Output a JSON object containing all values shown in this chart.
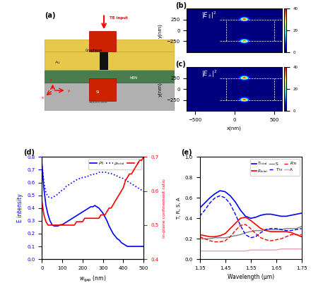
{
  "panel_d": {
    "x": [
      0,
      10,
      20,
      30,
      40,
      50,
      60,
      70,
      80,
      90,
      100,
      110,
      120,
      130,
      140,
      150,
      160,
      170,
      180,
      190,
      200,
      210,
      220,
      230,
      240,
      250,
      260,
      270,
      280,
      290,
      300,
      310,
      320,
      330,
      340,
      350,
      360,
      370,
      380,
      390,
      400,
      410,
      420,
      430,
      440,
      450,
      460,
      470,
      480,
      490,
      500
    ],
    "rho_parallel": [
      0.75,
      0.55,
      0.42,
      0.35,
      0.3,
      0.27,
      0.26,
      0.26,
      0.26,
      0.27,
      0.27,
      0.28,
      0.29,
      0.3,
      0.31,
      0.32,
      0.33,
      0.34,
      0.35,
      0.36,
      0.37,
      0.38,
      0.39,
      0.4,
      0.41,
      0.41,
      0.42,
      0.41,
      0.4,
      0.38,
      0.36,
      0.33,
      0.3,
      0.26,
      0.23,
      0.2,
      0.18,
      0.16,
      0.15,
      0.13,
      0.12,
      0.11,
      0.1,
      0.1,
      0.1,
      0.1,
      0.1,
      0.1,
      0.1,
      0.1,
      0.1
    ],
    "rho_total": [
      0.75,
      0.6,
      0.52,
      0.49,
      0.48,
      0.48,
      0.49,
      0.5,
      0.51,
      0.53,
      0.54,
      0.55,
      0.57,
      0.58,
      0.59,
      0.6,
      0.61,
      0.62,
      0.63,
      0.63,
      0.64,
      0.64,
      0.65,
      0.65,
      0.66,
      0.66,
      0.67,
      0.67,
      0.68,
      0.68,
      0.68,
      0.68,
      0.68,
      0.67,
      0.67,
      0.66,
      0.66,
      0.65,
      0.64,
      0.64,
      0.63,
      0.62,
      0.61,
      0.6,
      0.59,
      0.58,
      0.57,
      0.56,
      0.55,
      0.54,
      0.53
    ],
    "gamma": [
      0.57,
      0.53,
      0.51,
      0.5,
      0.5,
      0.5,
      0.5,
      0.5,
      0.5,
      0.5,
      0.5,
      0.5,
      0.5,
      0.5,
      0.5,
      0.5,
      0.5,
      0.51,
      0.51,
      0.51,
      0.51,
      0.52,
      0.52,
      0.52,
      0.52,
      0.52,
      0.52,
      0.52,
      0.52,
      0.53,
      0.53,
      0.53,
      0.54,
      0.55,
      0.55,
      0.56,
      0.57,
      0.58,
      0.59,
      0.6,
      0.61,
      0.63,
      0.64,
      0.65,
      0.65,
      0.66,
      0.67,
      0.68,
      0.69,
      0.69,
      0.7
    ],
    "ylabel_left": "E intensity",
    "ylabel_right": "In-plane confinement ratio",
    "xlabel": "w gap (nm)",
    "ylim_left": [
      0,
      0.8
    ],
    "ylim_right": [
      0.4,
      0.7
    ],
    "yticks_right": [
      0.4,
      0.5,
      0.6,
      0.7
    ],
    "label_rho_parallel": "ρ∥",
    "label_rho_total": "ρtotal",
    "label_gamma": "γ"
  },
  "panel_e": {
    "wavelength": [
      1.35,
      1.37,
      1.39,
      1.41,
      1.43,
      1.45,
      1.47,
      1.49,
      1.51,
      1.53,
      1.55,
      1.57,
      1.59,
      1.61,
      1.63,
      1.65,
      1.67,
      1.69,
      1.71,
      1.73,
      1.75
    ],
    "T_total": [
      0.5,
      0.55,
      0.6,
      0.64,
      0.67,
      0.66,
      0.62,
      0.56,
      0.48,
      0.42,
      0.4,
      0.41,
      0.43,
      0.44,
      0.44,
      0.43,
      0.42,
      0.42,
      0.43,
      0.44,
      0.45
    ],
    "R_total": [
      0.24,
      0.23,
      0.22,
      0.22,
      0.23,
      0.25,
      0.3,
      0.35,
      0.4,
      0.41,
      0.38,
      0.34,
      0.3,
      0.28,
      0.27,
      0.27,
      0.27,
      0.27,
      0.26,
      0.24,
      0.22
    ],
    "S": [
      0.2,
      0.2,
      0.2,
      0.21,
      0.21,
      0.21,
      0.22,
      0.23,
      0.24,
      0.26,
      0.27,
      0.28,
      0.28,
      0.29,
      0.29,
      0.29,
      0.29,
      0.3,
      0.3,
      0.3,
      0.32
    ],
    "T_TE": [
      0.42,
      0.48,
      0.55,
      0.6,
      0.62,
      0.6,
      0.54,
      0.44,
      0.33,
      0.24,
      0.21,
      0.22,
      0.26,
      0.29,
      0.3,
      0.3,
      0.29,
      0.28,
      0.28,
      0.29,
      0.3
    ],
    "R_TE": [
      0.22,
      0.2,
      0.18,
      0.17,
      0.17,
      0.18,
      0.22,
      0.28,
      0.33,
      0.34,
      0.3,
      0.25,
      0.21,
      0.19,
      0.18,
      0.19,
      0.2,
      0.22,
      0.24,
      0.24,
      0.24
    ],
    "A": [
      0.08,
      0.08,
      0.08,
      0.08,
      0.08,
      0.08,
      0.08,
      0.08,
      0.08,
      0.08,
      0.09,
      0.09,
      0.09,
      0.09,
      0.09,
      0.09,
      0.1,
      0.1,
      0.1,
      0.1,
      0.1
    ],
    "ylabel": "T, R, S, A",
    "xlabel": "Wavelength (μm)",
    "ylim": [
      0,
      1
    ],
    "xlim": [
      1.35,
      1.75
    ]
  }
}
